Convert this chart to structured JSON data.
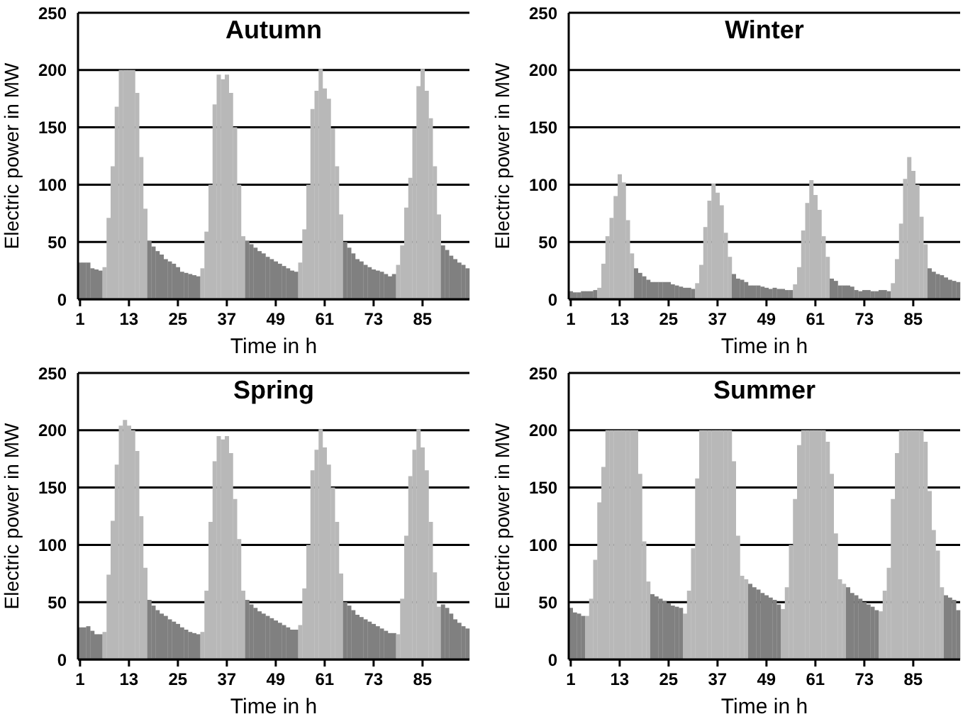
{
  "chart_data": [
    {
      "type": "bar",
      "title": "Autumn",
      "xlabel": "Time in h",
      "ylabel": "Electric power in MW",
      "ylim": [
        0,
        250
      ],
      "yticks": [
        0,
        50,
        100,
        150,
        200,
        250
      ],
      "grid": "y",
      "categories": [
        "1",
        null,
        null,
        null,
        null,
        null,
        null,
        null,
        null,
        null,
        null,
        null,
        "13",
        null,
        null,
        null,
        null,
        null,
        null,
        null,
        null,
        null,
        null,
        null,
        "25",
        null,
        null,
        null,
        null,
        null,
        null,
        null,
        null,
        null,
        null,
        null,
        "37",
        null,
        null,
        null,
        null,
        null,
        null,
        null,
        null,
        null,
        null,
        null,
        "49",
        null,
        null,
        null,
        null,
        null,
        null,
        null,
        null,
        null,
        null,
        null,
        "61",
        null,
        null,
        null,
        null,
        null,
        null,
        null,
        null,
        null,
        null,
        null,
        "73",
        null,
        null,
        null,
        null,
        null,
        null,
        null,
        null,
        null,
        null,
        null,
        "85",
        null,
        null,
        null,
        null,
        null,
        null,
        null,
        null,
        null,
        null,
        null
      ],
      "values": [
        32,
        32,
        32,
        27,
        26,
        25,
        28,
        71,
        116,
        168,
        200,
        200,
        200,
        200,
        180,
        124,
        79,
        51,
        46,
        42,
        39,
        35,
        33,
        31,
        28,
        24,
        23,
        22,
        21,
        20,
        27,
        59,
        100,
        170,
        196,
        192,
        196,
        180,
        150,
        100,
        55,
        51,
        48,
        45,
        42,
        40,
        37,
        35,
        33,
        31,
        29,
        27,
        25,
        24,
        32,
        61,
        100,
        166,
        182,
        201,
        184,
        175,
        149,
        116,
        74,
        50,
        45,
        40,
        35,
        33,
        30,
        28,
        26,
        25,
        24,
        22,
        20,
        22,
        30,
        47,
        80,
        106,
        149,
        186,
        201,
        182,
        158,
        116,
        74,
        47,
        43,
        38,
        35,
        32,
        30,
        27
      ],
      "colors": [
        "#808080",
        "#808080",
        "#808080",
        "#808080",
        "#808080",
        "#808080",
        "#b8b8b8",
        "#b8b8b8",
        "#b8b8b8",
        "#b8b8b8",
        "#b8b8b8",
        "#b8b8b8",
        "#b8b8b8",
        "#b8b8b8",
        "#b8b8b8",
        "#b8b8b8",
        "#b8b8b8",
        "#808080",
        "#808080",
        "#808080",
        "#808080",
        "#808080",
        "#808080",
        "#808080",
        "#808080",
        "#808080",
        "#808080",
        "#808080",
        "#808080",
        "#808080",
        "#b8b8b8",
        "#b8b8b8",
        "#b8b8b8",
        "#b8b8b8",
        "#b8b8b8",
        "#b8b8b8",
        "#b8b8b8",
        "#b8b8b8",
        "#b8b8b8",
        "#b8b8b8",
        "#b8b8b8",
        "#808080",
        "#808080",
        "#808080",
        "#808080",
        "#808080",
        "#808080",
        "#808080",
        "#808080",
        "#808080",
        "#808080",
        "#808080",
        "#808080",
        "#808080",
        "#b8b8b8",
        "#b8b8b8",
        "#b8b8b8",
        "#b8b8b8",
        "#b8b8b8",
        "#b8b8b8",
        "#b8b8b8",
        "#b8b8b8",
        "#b8b8b8",
        "#b8b8b8",
        "#b8b8b8",
        "#808080",
        "#808080",
        "#808080",
        "#808080",
        "#808080",
        "#808080",
        "#808080",
        "#808080",
        "#808080",
        "#808080",
        "#808080",
        "#808080",
        "#808080",
        "#b8b8b8",
        "#b8b8b8",
        "#b8b8b8",
        "#b8b8b8",
        "#b8b8b8",
        "#b8b8b8",
        "#b8b8b8",
        "#b8b8b8",
        "#b8b8b8",
        "#b8b8b8",
        "#b8b8b8",
        "#808080",
        "#808080",
        "#808080",
        "#808080",
        "#808080",
        "#808080",
        "#808080"
      ]
    },
    {
      "type": "bar",
      "title": "Winter",
      "xlabel": "Time in h",
      "ylabel": "Electric power in MW",
      "ylim": [
        0,
        250
      ],
      "yticks": [
        0,
        50,
        100,
        150,
        200,
        250
      ],
      "grid": "y",
      "categories": [
        "1",
        null,
        null,
        null,
        null,
        null,
        null,
        null,
        null,
        null,
        null,
        null,
        "13",
        null,
        null,
        null,
        null,
        null,
        null,
        null,
        null,
        null,
        null,
        null,
        "25",
        null,
        null,
        null,
        null,
        null,
        null,
        null,
        null,
        null,
        null,
        null,
        "37",
        null,
        null,
        null,
        null,
        null,
        null,
        null,
        null,
        null,
        null,
        null,
        "49",
        null,
        null,
        null,
        null,
        null,
        null,
        null,
        null,
        null,
        null,
        null,
        "61",
        null,
        null,
        null,
        null,
        null,
        null,
        null,
        null,
        null,
        null,
        null,
        "73",
        null,
        null,
        null,
        null,
        null,
        null,
        null,
        null,
        null,
        null,
        null,
        "85",
        null,
        null,
        null,
        null,
        null,
        null,
        null,
        null,
        null,
        null,
        null
      ],
      "values": [
        7,
        6,
        6,
        7,
        7,
        7,
        8,
        10,
        31,
        55,
        71,
        90,
        109,
        102,
        69,
        40,
        27,
        23,
        20,
        17,
        15,
        15,
        15,
        15,
        15,
        13,
        12,
        11,
        10,
        10,
        9,
        14,
        30,
        63,
        86,
        101,
        93,
        82,
        58,
        37,
        22,
        18,
        17,
        15,
        12,
        12,
        12,
        11,
        10,
        9,
        10,
        9,
        9,
        8,
        8,
        13,
        28,
        60,
        84,
        104,
        91,
        78,
        55,
        37,
        18,
        16,
        12,
        12,
        12,
        11,
        8,
        7,
        8,
        8,
        7,
        7,
        8,
        8,
        7,
        14,
        35,
        66,
        105,
        124,
        112,
        100,
        72,
        48,
        27,
        24,
        22,
        21,
        19,
        17,
        16,
        15
      ],
      "colors": [
        "#808080",
        "#808080",
        "#808080",
        "#808080",
        "#808080",
        "#808080",
        "#808080",
        "#b8b8b8",
        "#b8b8b8",
        "#b8b8b8",
        "#b8b8b8",
        "#b8b8b8",
        "#b8b8b8",
        "#b8b8b8",
        "#b8b8b8",
        "#b8b8b8",
        "#808080",
        "#808080",
        "#808080",
        "#808080",
        "#808080",
        "#808080",
        "#808080",
        "#808080",
        "#808080",
        "#808080",
        "#808080",
        "#808080",
        "#808080",
        "#808080",
        "#808080",
        "#b8b8b8",
        "#b8b8b8",
        "#b8b8b8",
        "#b8b8b8",
        "#b8b8b8",
        "#b8b8b8",
        "#b8b8b8",
        "#b8b8b8",
        "#b8b8b8",
        "#808080",
        "#808080",
        "#808080",
        "#808080",
        "#808080",
        "#808080",
        "#808080",
        "#808080",
        "#808080",
        "#808080",
        "#808080",
        "#808080",
        "#808080",
        "#808080",
        "#808080",
        "#b8b8b8",
        "#b8b8b8",
        "#b8b8b8",
        "#b8b8b8",
        "#b8b8b8",
        "#b8b8b8",
        "#b8b8b8",
        "#b8b8b8",
        "#b8b8b8",
        "#808080",
        "#808080",
        "#808080",
        "#808080",
        "#808080",
        "#808080",
        "#808080",
        "#808080",
        "#808080",
        "#808080",
        "#808080",
        "#808080",
        "#808080",
        "#808080",
        "#808080",
        "#b8b8b8",
        "#b8b8b8",
        "#b8b8b8",
        "#b8b8b8",
        "#b8b8b8",
        "#b8b8b8",
        "#b8b8b8",
        "#b8b8b8",
        "#b8b8b8",
        "#808080",
        "#808080",
        "#808080",
        "#808080",
        "#808080",
        "#808080",
        "#808080",
        "#808080"
      ]
    },
    {
      "type": "bar",
      "title": "Spring",
      "xlabel": "Time in h",
      "ylabel": "Electric power in MW",
      "ylim": [
        0,
        250
      ],
      "yticks": [
        0,
        50,
        100,
        150,
        200,
        250
      ],
      "grid": "y",
      "categories": [
        "1",
        null,
        null,
        null,
        null,
        null,
        null,
        null,
        null,
        null,
        null,
        null,
        "13",
        null,
        null,
        null,
        null,
        null,
        null,
        null,
        null,
        null,
        null,
        null,
        "25",
        null,
        null,
        null,
        null,
        null,
        null,
        null,
        null,
        null,
        null,
        null,
        "37",
        null,
        null,
        null,
        null,
        null,
        null,
        null,
        null,
        null,
        null,
        null,
        "49",
        null,
        null,
        null,
        null,
        null,
        null,
        null,
        null,
        null,
        null,
        null,
        "61",
        null,
        null,
        null,
        null,
        null,
        null,
        null,
        null,
        null,
        null,
        null,
        "73",
        null,
        null,
        null,
        null,
        null,
        null,
        null,
        null,
        null,
        null,
        null,
        "85",
        null,
        null,
        null,
        null,
        null,
        null,
        null,
        null,
        null,
        null,
        null
      ],
      "values": [
        28,
        28,
        29,
        25,
        22,
        22,
        24,
        74,
        121,
        170,
        204,
        209,
        204,
        200,
        182,
        125,
        80,
        52,
        47,
        43,
        40,
        38,
        35,
        33,
        31,
        28,
        26,
        24,
        23,
        22,
        24,
        60,
        120,
        173,
        195,
        192,
        195,
        180,
        140,
        105,
        60,
        52,
        48,
        45,
        42,
        40,
        38,
        36,
        34,
        32,
        30,
        28,
        26,
        26,
        30,
        62,
        100,
        165,
        183,
        201,
        185,
        170,
        150,
        120,
        75,
        50,
        47,
        43,
        39,
        37,
        35,
        33,
        31,
        29,
        27,
        25,
        23,
        23,
        22,
        53,
        108,
        160,
        183,
        201,
        185,
        165,
        120,
        76,
        46,
        48,
        45,
        40,
        35,
        32,
        29,
        27
      ],
      "colors": [
        "#808080",
        "#808080",
        "#808080",
        "#808080",
        "#808080",
        "#808080",
        "#b8b8b8",
        "#b8b8b8",
        "#b8b8b8",
        "#b8b8b8",
        "#b8b8b8",
        "#b8b8b8",
        "#b8b8b8",
        "#b8b8b8",
        "#b8b8b8",
        "#b8b8b8",
        "#b8b8b8",
        "#808080",
        "#808080",
        "#808080",
        "#808080",
        "#808080",
        "#808080",
        "#808080",
        "#808080",
        "#808080",
        "#808080",
        "#808080",
        "#808080",
        "#808080",
        "#b8b8b8",
        "#b8b8b8",
        "#b8b8b8",
        "#b8b8b8",
        "#b8b8b8",
        "#b8b8b8",
        "#b8b8b8",
        "#b8b8b8",
        "#b8b8b8",
        "#b8b8b8",
        "#b8b8b8",
        "#808080",
        "#808080",
        "#808080",
        "#808080",
        "#808080",
        "#808080",
        "#808080",
        "#808080",
        "#808080",
        "#808080",
        "#808080",
        "#808080",
        "#808080",
        "#b8b8b8",
        "#b8b8b8",
        "#b8b8b8",
        "#b8b8b8",
        "#b8b8b8",
        "#b8b8b8",
        "#b8b8b8",
        "#b8b8b8",
        "#b8b8b8",
        "#b8b8b8",
        "#b8b8b8",
        "#808080",
        "#808080",
        "#808080",
        "#808080",
        "#808080",
        "#808080",
        "#808080",
        "#808080",
        "#808080",
        "#808080",
        "#808080",
        "#808080",
        "#808080",
        "#b8b8b8",
        "#b8b8b8",
        "#b8b8b8",
        "#b8b8b8",
        "#b8b8b8",
        "#b8b8b8",
        "#b8b8b8",
        "#b8b8b8",
        "#b8b8b8",
        "#b8b8b8",
        "#b8b8b8",
        "#808080",
        "#808080",
        "#808080",
        "#808080",
        "#808080",
        "#808080",
        "#808080"
      ]
    },
    {
      "type": "bar",
      "title": "Summer",
      "xlabel": "Time in h",
      "ylabel": "Electric power in MW",
      "ylim": [
        0,
        250
      ],
      "yticks": [
        0,
        50,
        100,
        150,
        200,
        250
      ],
      "grid": "y",
      "categories": [
        "1",
        null,
        null,
        null,
        null,
        null,
        null,
        null,
        null,
        null,
        null,
        null,
        "13",
        null,
        null,
        null,
        null,
        null,
        null,
        null,
        null,
        null,
        null,
        null,
        "25",
        null,
        null,
        null,
        null,
        null,
        null,
        null,
        null,
        null,
        null,
        null,
        "37",
        null,
        null,
        null,
        null,
        null,
        null,
        null,
        null,
        null,
        null,
        null,
        "49",
        null,
        null,
        null,
        null,
        null,
        null,
        null,
        null,
        null,
        null,
        null,
        "61",
        null,
        null,
        null,
        null,
        null,
        null,
        null,
        null,
        null,
        null,
        null,
        "73",
        null,
        null,
        null,
        null,
        null,
        null,
        null,
        null,
        null,
        null,
        null,
        "85",
        null,
        null,
        null,
        null,
        null,
        null,
        null,
        null,
        null,
        null,
        null
      ],
      "values": [
        45,
        41,
        40,
        38,
        38,
        53,
        87,
        137,
        168,
        200,
        200,
        200,
        200,
        200,
        200,
        200,
        200,
        162,
        103,
        68,
        57,
        55,
        53,
        51,
        49,
        47,
        46,
        45,
        40,
        60,
        97,
        158,
        200,
        200,
        200,
        200,
        200,
        200,
        200,
        200,
        173,
        108,
        73,
        70,
        66,
        63,
        61,
        58,
        56,
        54,
        52,
        48,
        44,
        63,
        100,
        140,
        187,
        200,
        200,
        200,
        200,
        200,
        200,
        190,
        162,
        110,
        70,
        66,
        63,
        58,
        56,
        53,
        50,
        48,
        46,
        43,
        42,
        60,
        80,
        140,
        180,
        200,
        200,
        200,
        200,
        200,
        200,
        190,
        147,
        113,
        95,
        63,
        56,
        54,
        52,
        43
      ],
      "colors": [
        "#808080",
        "#808080",
        "#808080",
        "#808080",
        "#b8b8b8",
        "#b8b8b8",
        "#b8b8b8",
        "#b8b8b8",
        "#b8b8b8",
        "#b8b8b8",
        "#b8b8b8",
        "#b8b8b8",
        "#b8b8b8",
        "#b8b8b8",
        "#b8b8b8",
        "#b8b8b8",
        "#b8b8b8",
        "#b8b8b8",
        "#b8b8b8",
        "#b8b8b8",
        "#808080",
        "#808080",
        "#808080",
        "#808080",
        "#808080",
        "#808080",
        "#808080",
        "#808080",
        "#b8b8b8",
        "#b8b8b8",
        "#b8b8b8",
        "#b8b8b8",
        "#b8b8b8",
        "#b8b8b8",
        "#b8b8b8",
        "#b8b8b8",
        "#b8b8b8",
        "#b8b8b8",
        "#b8b8b8",
        "#b8b8b8",
        "#b8b8b8",
        "#b8b8b8",
        "#b8b8b8",
        "#b8b8b8",
        "#808080",
        "#808080",
        "#808080",
        "#808080",
        "#808080",
        "#808080",
        "#808080",
        "#808080",
        "#b8b8b8",
        "#b8b8b8",
        "#b8b8b8",
        "#b8b8b8",
        "#b8b8b8",
        "#b8b8b8",
        "#b8b8b8",
        "#b8b8b8",
        "#b8b8b8",
        "#b8b8b8",
        "#b8b8b8",
        "#b8b8b8",
        "#b8b8b8",
        "#b8b8b8",
        "#b8b8b8",
        "#b8b8b8",
        "#808080",
        "#808080",
        "#808080",
        "#808080",
        "#808080",
        "#808080",
        "#808080",
        "#808080",
        "#b8b8b8",
        "#b8b8b8",
        "#b8b8b8",
        "#b8b8b8",
        "#b8b8b8",
        "#b8b8b8",
        "#b8b8b8",
        "#b8b8b8",
        "#b8b8b8",
        "#b8b8b8",
        "#b8b8b8",
        "#b8b8b8",
        "#b8b8b8",
        "#b8b8b8",
        "#b8b8b8",
        "#b8b8b8",
        "#808080",
        "#808080",
        "#808080",
        "#808080"
      ]
    }
  ]
}
